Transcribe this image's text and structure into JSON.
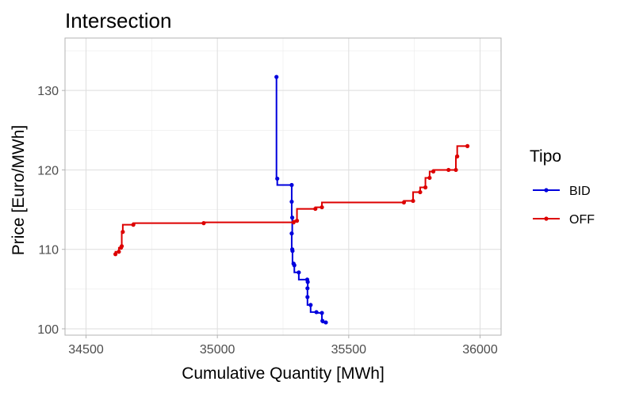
{
  "chart_data": {
    "type": "line",
    "title": "Intersection",
    "xlabel": "Cumulative Quantity [MWh]",
    "ylabel": "Price [Euro/MWh]",
    "xlim": [
      34420,
      36080
    ],
    "ylim": [
      99.2,
      136.6
    ],
    "x_ticks": [
      34500,
      35000,
      35500,
      36000
    ],
    "y_ticks": [
      100,
      110,
      120,
      130
    ],
    "grid": true,
    "step": true,
    "legend": {
      "title": "Tipo",
      "position": "right"
    },
    "series": [
      {
        "name": "BID",
        "color": "#0000dd",
        "points": [
          [
            35225,
            131.7
          ],
          [
            35228,
            118.9
          ],
          [
            35283,
            118.1
          ],
          [
            35283,
            116.0
          ],
          [
            35285,
            114.0
          ],
          [
            35283,
            112.0
          ],
          [
            35285,
            110.0
          ],
          [
            35286,
            109.8
          ],
          [
            35290,
            108.2
          ],
          [
            35293,
            108.0
          ],
          [
            35310,
            107.1
          ],
          [
            35342,
            106.2
          ],
          [
            35344,
            105.9
          ],
          [
            35343,
            105.1
          ],
          [
            35343,
            104.0
          ],
          [
            35355,
            103.0
          ],
          [
            35377,
            102.1
          ],
          [
            35398,
            102.0
          ],
          [
            35400,
            101.0
          ],
          [
            35413,
            100.8
          ]
        ]
      },
      {
        "name": "OFF",
        "color": "#dd0000",
        "points": [
          [
            34612,
            109.4
          ],
          [
            34625,
            109.7
          ],
          [
            34633,
            110.2
          ],
          [
            34636,
            110.4
          ],
          [
            34640,
            112.2
          ],
          [
            34680,
            113.1
          ],
          [
            34948,
            113.3
          ],
          [
            35290,
            113.4
          ],
          [
            35303,
            113.6
          ],
          [
            35373,
            115.1
          ],
          [
            35398,
            115.3
          ],
          [
            35710,
            115.9
          ],
          [
            35745,
            116.1
          ],
          [
            35772,
            117.2
          ],
          [
            35792,
            117.8
          ],
          [
            35808,
            119.0
          ],
          [
            35822,
            119.8
          ],
          [
            35880,
            120.0
          ],
          [
            35908,
            120.0
          ],
          [
            35913,
            121.7
          ],
          [
            35952,
            123.0
          ]
        ]
      }
    ]
  }
}
